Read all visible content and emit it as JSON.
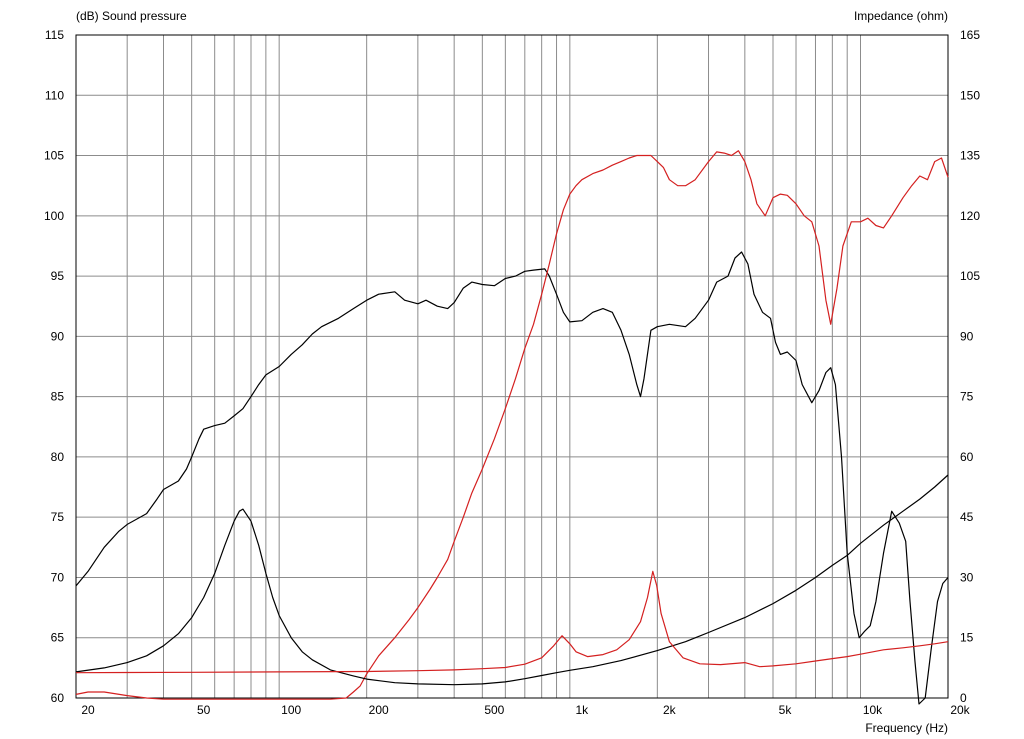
{
  "chart_data": {
    "type": "line",
    "title": "",
    "left_axis_label": "(dB)  Sound pressure",
    "right_axis_label": "Impedance  (ohm)",
    "xlabel": "Frequency  (Hz)",
    "x_scale": "log",
    "xlim": [
      20,
      20000
    ],
    "ylim_left": [
      60,
      115
    ],
    "ylim_right": [
      0,
      165
    ],
    "grid": true,
    "x_tick_labels": [
      {
        "value": 20,
        "label": "20"
      },
      {
        "value": 50,
        "label": "50"
      },
      {
        "value": 100,
        "label": "100"
      },
      {
        "value": 200,
        "label": "200"
      },
      {
        "value": 500,
        "label": "500"
      },
      {
        "value": 1000,
        "label": "1k"
      },
      {
        "value": 2000,
        "label": "2k"
      },
      {
        "value": 5000,
        "label": "5k"
      },
      {
        "value": 10000,
        "label": "10k"
      },
      {
        "value": 20000,
        "label": "20k"
      }
    ],
    "y_left_ticks": [
      {
        "value": 60,
        "label": "60"
      },
      {
        "value": 65,
        "label": "65"
      },
      {
        "value": 70,
        "label": "70"
      },
      {
        "value": 75,
        "label": "75"
      },
      {
        "value": 80,
        "label": "80"
      },
      {
        "value": 85,
        "label": "85"
      },
      {
        "value": 90,
        "label": "90"
      },
      {
        "value": 95,
        "label": "95"
      },
      {
        "value": 100,
        "label": "100"
      },
      {
        "value": 105,
        "label": "105"
      },
      {
        "value": 110,
        "label": "110"
      },
      {
        "value": 115,
        "label": "115"
      }
    ],
    "y_right_ticks": [
      {
        "value": 0,
        "label": "0"
      },
      {
        "value": 15,
        "label": "15"
      },
      {
        "value": 30,
        "label": "30"
      },
      {
        "value": 45,
        "label": "45"
      },
      {
        "value": 60,
        "label": "60"
      },
      {
        "value": 75,
        "label": "75"
      },
      {
        "value": 90,
        "label": "90"
      },
      {
        "value": 105,
        "label": "105"
      },
      {
        "value": 120,
        "label": "120"
      },
      {
        "value": 135,
        "label": "135"
      },
      {
        "value": 150,
        "label": "150"
      },
      {
        "value": 165,
        "label": "165"
      }
    ],
    "series": [
      {
        "color": "#000000",
        "axis": "left",
        "points": [
          [
            20,
            69.3
          ],
          [
            22,
            70.5
          ],
          [
            25,
            72.5
          ],
          [
            28,
            73.8
          ],
          [
            30,
            74.4
          ],
          [
            35,
            75.3
          ],
          [
            38,
            76.5
          ],
          [
            40,
            77.3
          ],
          [
            45,
            78.0
          ],
          [
            48,
            79.0
          ],
          [
            50,
            80.0
          ],
          [
            53,
            81.5
          ],
          [
            55,
            82.3
          ],
          [
            60,
            82.6
          ],
          [
            65,
            82.8
          ],
          [
            70,
            83.4
          ],
          [
            75,
            84.0
          ],
          [
            80,
            85.0
          ],
          [
            85,
            86.0
          ],
          [
            90,
            86.8
          ],
          [
            100,
            87.5
          ],
          [
            110,
            88.5
          ],
          [
            120,
            89.3
          ],
          [
            130,
            90.2
          ],
          [
            140,
            90.8
          ],
          [
            160,
            91.5
          ],
          [
            180,
            92.3
          ],
          [
            200,
            93.0
          ],
          [
            220,
            93.5
          ],
          [
            250,
            93.7
          ],
          [
            270,
            93.0
          ],
          [
            300,
            92.7
          ],
          [
            320,
            93.0
          ],
          [
            350,
            92.5
          ],
          [
            380,
            92.3
          ],
          [
            400,
            92.8
          ],
          [
            430,
            94.0
          ],
          [
            460,
            94.5
          ],
          [
            500,
            94.3
          ],
          [
            550,
            94.2
          ],
          [
            600,
            94.8
          ],
          [
            650,
            95.0
          ],
          [
            700,
            95.4
          ],
          [
            750,
            95.5
          ],
          [
            820,
            95.6
          ],
          [
            850,
            95.0
          ],
          [
            900,
            93.5
          ],
          [
            950,
            92.0
          ],
          [
            1000,
            91.2
          ],
          [
            1100,
            91.3
          ],
          [
            1200,
            92.0
          ],
          [
            1300,
            92.3
          ],
          [
            1400,
            92.0
          ],
          [
            1500,
            90.5
          ],
          [
            1600,
            88.5
          ],
          [
            1700,
            86.0
          ],
          [
            1750,
            85.0
          ],
          [
            1800,
            86.5
          ],
          [
            1900,
            90.5
          ],
          [
            2000,
            90.8
          ],
          [
            2200,
            91.0
          ],
          [
            2500,
            90.8
          ],
          [
            2700,
            91.5
          ],
          [
            3000,
            93.0
          ],
          [
            3200,
            94.5
          ],
          [
            3500,
            95.0
          ],
          [
            3700,
            96.5
          ],
          [
            3900,
            97.0
          ],
          [
            4100,
            96.0
          ],
          [
            4300,
            93.5
          ],
          [
            4600,
            92.0
          ],
          [
            4900,
            91.5
          ],
          [
            5100,
            89.5
          ],
          [
            5300,
            88.5
          ],
          [
            5600,
            88.7
          ],
          [
            6000,
            88.0
          ],
          [
            6300,
            86.0
          ],
          [
            6800,
            84.5
          ],
          [
            7200,
            85.5
          ],
          [
            7600,
            87.0
          ],
          [
            7900,
            87.4
          ],
          [
            8200,
            86.0
          ],
          [
            8600,
            80.0
          ],
          [
            9000,
            72.0
          ],
          [
            9500,
            67.0
          ],
          [
            9900,
            65.0
          ],
          [
            10300,
            65.5
          ],
          [
            10800,
            66.0
          ],
          [
            11300,
            68.0
          ],
          [
            12000,
            72.0
          ],
          [
            12800,
            75.5
          ],
          [
            13600,
            74.5
          ],
          [
            14300,
            73.0
          ],
          [
            14800,
            68.0
          ],
          [
            15400,
            63.0
          ],
          [
            15900,
            59.5
          ],
          [
            16700,
            60.0
          ],
          [
            17500,
            64.0
          ],
          [
            18400,
            68.0
          ],
          [
            19200,
            69.5
          ],
          [
            20000,
            70.0
          ]
        ]
      },
      {
        "color": "#d42020",
        "axis": "left",
        "points": [
          [
            20,
            60.3
          ],
          [
            22,
            60.5
          ],
          [
            25,
            60.5
          ],
          [
            30,
            60.2
          ],
          [
            35,
            60.0
          ],
          [
            40,
            59.9
          ],
          [
            60,
            59.9
          ],
          [
            100,
            59.9
          ],
          [
            150,
            59.9
          ],
          [
            170,
            60.0
          ],
          [
            180,
            60.5
          ],
          [
            190,
            61.0
          ],
          [
            200,
            62.0
          ],
          [
            220,
            63.5
          ],
          [
            250,
            65.0
          ],
          [
            280,
            66.5
          ],
          [
            300,
            67.5
          ],
          [
            330,
            69.0
          ],
          [
            350,
            70.0
          ],
          [
            380,
            71.5
          ],
          [
            400,
            73.0
          ],
          [
            430,
            75.0
          ],
          [
            460,
            77.0
          ],
          [
            500,
            79.0
          ],
          [
            550,
            81.5
          ],
          [
            600,
            84.0
          ],
          [
            650,
            86.5
          ],
          [
            700,
            89.0
          ],
          [
            750,
            91.0
          ],
          [
            800,
            93.5
          ],
          [
            850,
            96.0
          ],
          [
            900,
            98.5
          ],
          [
            950,
            100.5
          ],
          [
            1000,
            101.8
          ],
          [
            1050,
            102.5
          ],
          [
            1100,
            103.0
          ],
          [
            1200,
            103.5
          ],
          [
            1300,
            103.8
          ],
          [
            1400,
            104.2
          ],
          [
            1500,
            104.5
          ],
          [
            1600,
            104.8
          ],
          [
            1700,
            105.0
          ],
          [
            1800,
            105.0
          ],
          [
            1900,
            105.0
          ],
          [
            2000,
            104.5
          ],
          [
            2100,
            104.0
          ],
          [
            2200,
            103.0
          ],
          [
            2350,
            102.5
          ],
          [
            2500,
            102.5
          ],
          [
            2700,
            103.0
          ],
          [
            3000,
            104.5
          ],
          [
            3200,
            105.3
          ],
          [
            3400,
            105.2
          ],
          [
            3600,
            105.0
          ],
          [
            3800,
            105.4
          ],
          [
            4000,
            104.5
          ],
          [
            4200,
            103.0
          ],
          [
            4400,
            101.0
          ],
          [
            4700,
            100.0
          ],
          [
            5000,
            101.5
          ],
          [
            5300,
            101.8
          ],
          [
            5600,
            101.7
          ],
          [
            6000,
            101.0
          ],
          [
            6400,
            100.0
          ],
          [
            6800,
            99.5
          ],
          [
            7200,
            97.5
          ],
          [
            7600,
            93.0
          ],
          [
            7900,
            91.0
          ],
          [
            8300,
            94.0
          ],
          [
            8700,
            97.5
          ],
          [
            9300,
            99.5
          ],
          [
            10000,
            99.5
          ],
          [
            10600,
            99.8
          ],
          [
            11300,
            99.2
          ],
          [
            12000,
            99.0
          ],
          [
            12800,
            100.0
          ],
          [
            14000,
            101.5
          ],
          [
            15000,
            102.5
          ],
          [
            16000,
            103.3
          ],
          [
            17000,
            103.0
          ],
          [
            18000,
            104.5
          ],
          [
            19000,
            104.8
          ],
          [
            20000,
            103.2
          ]
        ]
      },
      {
        "color": "#000000",
        "axis": "right",
        "points": [
          [
            20,
            6.5
          ],
          [
            25,
            7.5
          ],
          [
            30,
            8.8
          ],
          [
            35,
            10.5
          ],
          [
            40,
            13.0
          ],
          [
            45,
            16.0
          ],
          [
            50,
            20.0
          ],
          [
            55,
            25.0
          ],
          [
            60,
            31.0
          ],
          [
            65,
            38.0
          ],
          [
            70,
            44.0
          ],
          [
            73,
            46.5
          ],
          [
            75,
            47.0
          ],
          [
            80,
            44.0
          ],
          [
            85,
            38.0
          ],
          [
            90,
            31.0
          ],
          [
            95,
            25.0
          ],
          [
            100,
            20.5
          ],
          [
            110,
            15.0
          ],
          [
            120,
            11.5
          ],
          [
            130,
            9.5
          ],
          [
            150,
            7.0
          ],
          [
            180,
            5.5
          ],
          [
            200,
            4.7
          ],
          [
            250,
            3.8
          ],
          [
            300,
            3.5
          ],
          [
            400,
            3.3
          ],
          [
            500,
            3.5
          ],
          [
            600,
            4.0
          ],
          [
            700,
            4.8
          ],
          [
            800,
            5.6
          ],
          [
            900,
            6.3
          ],
          [
            1000,
            6.9
          ],
          [
            1200,
            7.8
          ],
          [
            1500,
            9.3
          ],
          [
            2000,
            11.8
          ],
          [
            2500,
            14.0
          ],
          [
            3000,
            16.3
          ],
          [
            4000,
            20.0
          ],
          [
            5000,
            23.5
          ],
          [
            6000,
            26.8
          ],
          [
            7000,
            30.0
          ],
          [
            8000,
            33.0
          ],
          [
            9000,
            35.5
          ],
          [
            10000,
            38.5
          ],
          [
            12000,
            43.0
          ],
          [
            14000,
            46.5
          ],
          [
            16000,
            49.5
          ],
          [
            18000,
            52.5
          ],
          [
            20000,
            55.5
          ]
        ]
      },
      {
        "color": "#d42020",
        "axis": "right",
        "points": [
          [
            20,
            6.3
          ],
          [
            50,
            6.4
          ],
          [
            100,
            6.5
          ],
          [
            200,
            6.6
          ],
          [
            300,
            6.8
          ],
          [
            400,
            7.0
          ],
          [
            500,
            7.3
          ],
          [
            600,
            7.6
          ],
          [
            700,
            8.4
          ],
          [
            800,
            10.0
          ],
          [
            880,
            13.0
          ],
          [
            940,
            15.5
          ],
          [
            1000,
            13.5
          ],
          [
            1050,
            11.5
          ],
          [
            1150,
            10.3
          ],
          [
            1300,
            10.8
          ],
          [
            1450,
            12.0
          ],
          [
            1600,
            14.5
          ],
          [
            1750,
            19.0
          ],
          [
            1850,
            25.0
          ],
          [
            1930,
            31.5
          ],
          [
            1990,
            28.0
          ],
          [
            2060,
            21.0
          ],
          [
            2200,
            14.0
          ],
          [
            2450,
            10.0
          ],
          [
            2800,
            8.5
          ],
          [
            3300,
            8.3
          ],
          [
            4000,
            8.8
          ],
          [
            4500,
            7.8
          ],
          [
            5000,
            8.0
          ],
          [
            6000,
            8.5
          ],
          [
            7000,
            9.2
          ],
          [
            8000,
            9.8
          ],
          [
            9000,
            10.3
          ],
          [
            10000,
            10.9
          ],
          [
            12000,
            12.0
          ],
          [
            14000,
            12.5
          ],
          [
            16000,
            13.0
          ],
          [
            18000,
            13.5
          ],
          [
            20000,
            14.0
          ]
        ]
      }
    ]
  }
}
